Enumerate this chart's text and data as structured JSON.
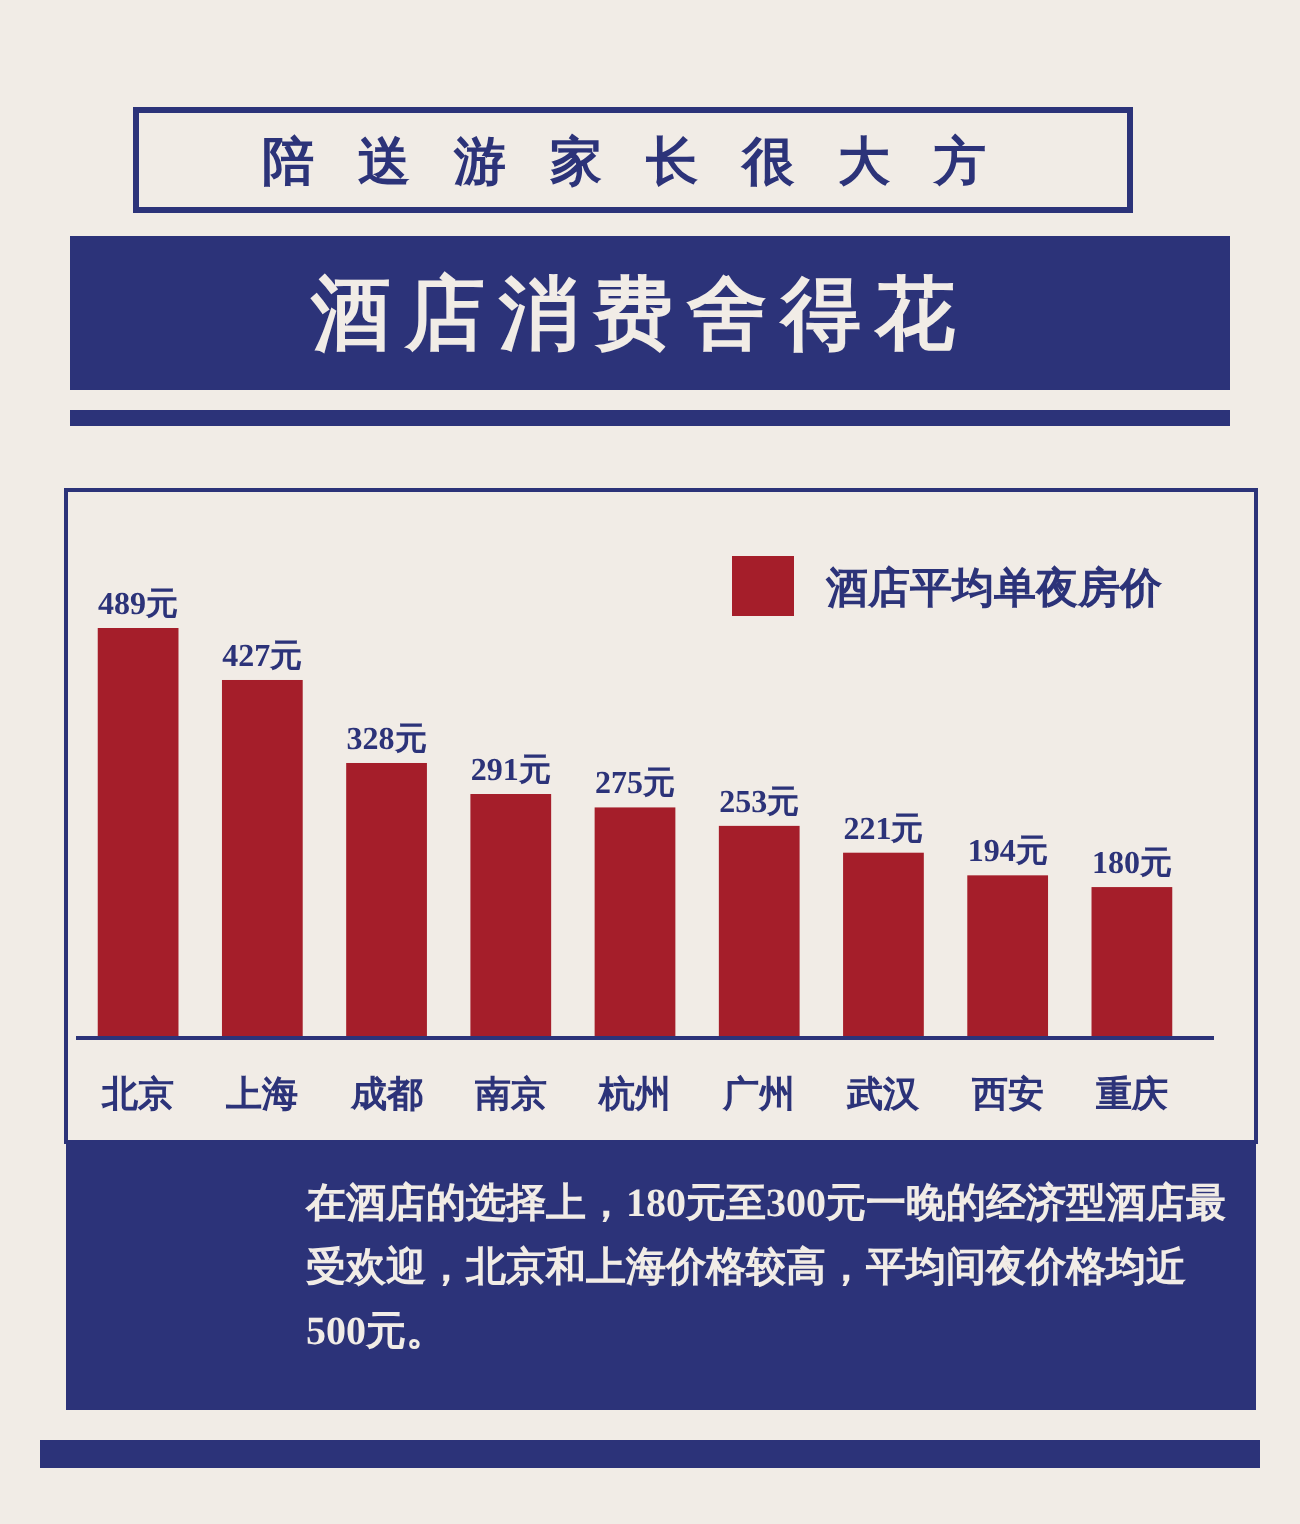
{
  "chart_data": {
    "type": "bar",
    "title": "陪送游家长很大方",
    "subtitle": "酒店消费舍得花",
    "categories": [
      "北京",
      "上海",
      "成都",
      "南京",
      "杭州",
      "广州",
      "武汉",
      "西安",
      "重庆"
    ],
    "series": [
      {
        "name": "酒店平均单夜房价",
        "color": "#a51e2a",
        "values": [
          489,
          427,
          328,
          291,
          275,
          253,
          221,
          194,
          180
        ],
        "value_labels": [
          "489元",
          "427元",
          "328元",
          "291元",
          "275元",
          "253元",
          "221元",
          "194元",
          "180元"
        ]
      }
    ],
    "tick_labels": "x",
    "legend": "top right",
    "annotations": [
      "在酒店的选择上，180元至300元一晚的经济型酒店最受欢迎，北京和上海价格较高，平均间夜价格均近500元。"
    ]
  }
}
